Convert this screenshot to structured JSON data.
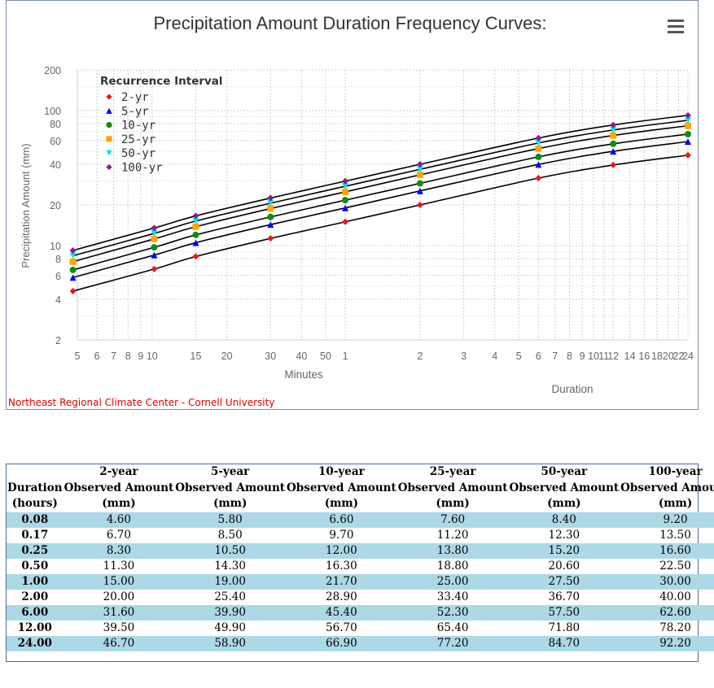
{
  "chart_data": {
    "type": "line",
    "title": "Precipitation Amount Duration Frequency Curves:",
    "ylabel": "Precipitation Amount (mm)",
    "xlabel": "Duration",
    "x_minutes_label": "Minutes",
    "legend_title": "Recurrence Interval",
    "legend_position": "top-left",
    "y_scale": "log",
    "x_scale": "log",
    "ylim": [
      2,
      200
    ],
    "x_unit": "hours",
    "x": [
      0.08,
      0.17,
      0.25,
      0.5,
      1,
      2,
      6,
      12,
      24
    ],
    "y_tick_labels": [
      "2",
      "4",
      "6",
      "8",
      "10",
      "20",
      "40",
      "60",
      "80",
      "100",
      "200"
    ],
    "x_tick_labels_minutes": [
      "5",
      "6",
      "7",
      "8",
      "9",
      "10",
      "15",
      "20",
      "30",
      "40",
      "50"
    ],
    "x_tick_labels_hours": [
      "1",
      "2",
      "3",
      "4",
      "5",
      "6",
      "7",
      "8",
      "9",
      "10",
      "11",
      "12",
      "14",
      "16",
      "18",
      "20",
      "22",
      "24"
    ],
    "series": [
      {
        "name": "2-yr",
        "color": "#e41a1c",
        "marker": "diamond",
        "values": [
          4.6,
          6.7,
          8.3,
          11.3,
          15.0,
          20.0,
          31.6,
          39.5,
          46.7
        ]
      },
      {
        "name": "5-yr",
        "color": "#0000ff",
        "marker": "triangle",
        "values": [
          5.8,
          8.5,
          10.5,
          14.3,
          19.0,
          25.4,
          39.9,
          49.9,
          58.9
        ]
      },
      {
        "name": "10-yr",
        "color": "#138a13",
        "marker": "circle",
        "values": [
          6.6,
          9.7,
          12.0,
          16.3,
          21.7,
          28.9,
          45.4,
          56.7,
          66.9
        ]
      },
      {
        "name": "25-yr",
        "color": "#ffa500",
        "marker": "square",
        "values": [
          7.6,
          11.2,
          13.8,
          18.8,
          25.0,
          33.4,
          52.3,
          65.4,
          77.2
        ]
      },
      {
        "name": "50-yr",
        "color": "#00e5ee",
        "marker": "triangle-down",
        "values": [
          8.4,
          12.3,
          15.2,
          20.6,
          27.5,
          36.7,
          57.5,
          71.8,
          84.7
        ]
      },
      {
        "name": "100-yr",
        "color": "#8b1a8b",
        "marker": "diamond",
        "values": [
          9.2,
          13.5,
          16.6,
          22.5,
          30.0,
          40.0,
          62.6,
          78.2,
          92.2
        ]
      }
    ],
    "credit": "Northeast Regional Climate Center - Cornell University",
    "grid": "dotted"
  },
  "table": {
    "header_row1": [
      "",
      "2-year",
      "5-year",
      "10-year",
      "25-year",
      "50-year",
      "100-year"
    ],
    "header_row2": [
      "Duration",
      "Observed Amount",
      "Observed Amount",
      "Observed Amount",
      "Observed Amount",
      "Observed Amount",
      "Observed Amount"
    ],
    "header_row3": [
      "(hours)",
      "(mm)",
      "(mm)",
      "(mm)",
      "(mm)",
      "(mm)",
      "(mm)"
    ],
    "rows": [
      [
        "0.08",
        "4.60",
        "5.80",
        "6.60",
        "7.60",
        "8.40",
        "9.20"
      ],
      [
        "0.17",
        "6.70",
        "8.50",
        "9.70",
        "11.20",
        "12.30",
        "13.50"
      ],
      [
        "0.25",
        "8.30",
        "10.50",
        "12.00",
        "13.80",
        "15.20",
        "16.60"
      ],
      [
        "0.50",
        "11.30",
        "14.30",
        "16.30",
        "18.80",
        "20.60",
        "22.50"
      ],
      [
        "1.00",
        "15.00",
        "19.00",
        "21.70",
        "25.00",
        "27.50",
        "30.00"
      ],
      [
        "2.00",
        "20.00",
        "25.40",
        "28.90",
        "33.40",
        "36.70",
        "40.00"
      ],
      [
        "6.00",
        "31.60",
        "39.90",
        "45.40",
        "52.30",
        "57.50",
        "62.60"
      ],
      [
        "12.00",
        "39.50",
        "49.90",
        "56.70",
        "65.40",
        "71.80",
        "78.20"
      ],
      [
        "24.00",
        "46.70",
        "58.90",
        "66.90",
        "77.20",
        "84.70",
        "92.20"
      ]
    ],
    "shade_color": "#add8e6"
  },
  "menu_icon": "hamburger-menu-icon"
}
